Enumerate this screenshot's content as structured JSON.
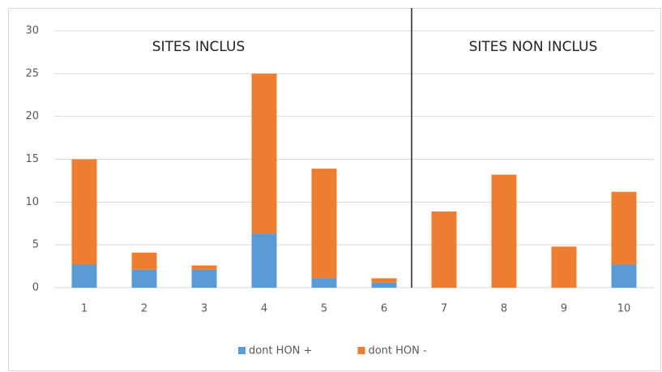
{
  "chart_data": {
    "type": "stacked_bar",
    "categories": [
      "1",
      "2",
      "3",
      "4",
      "5",
      "6",
      "7",
      "8",
      "9",
      "10"
    ],
    "series": [
      {
        "name": "dont HON +",
        "color": "#5b9bd5",
        "values": [
          2.7,
          2.1,
          2.1,
          6.3,
          1.1,
          0.6,
          0,
          0,
          0,
          2.7
        ]
      },
      {
        "name": "dont HON -",
        "color": "#ed7d31",
        "values": [
          12.3,
          2.0,
          0.5,
          18.7,
          12.8,
          0.5,
          8.9,
          13.2,
          4.8,
          8.5
        ]
      }
    ],
    "annotations": [
      "SITES INCLUS",
      "SITES NON INCLUS"
    ],
    "ylim": [
      0,
      30
    ],
    "yticks": [
      0,
      5,
      10,
      15,
      20,
      25,
      30
    ],
    "grid": true,
    "legend": "bottom"
  }
}
